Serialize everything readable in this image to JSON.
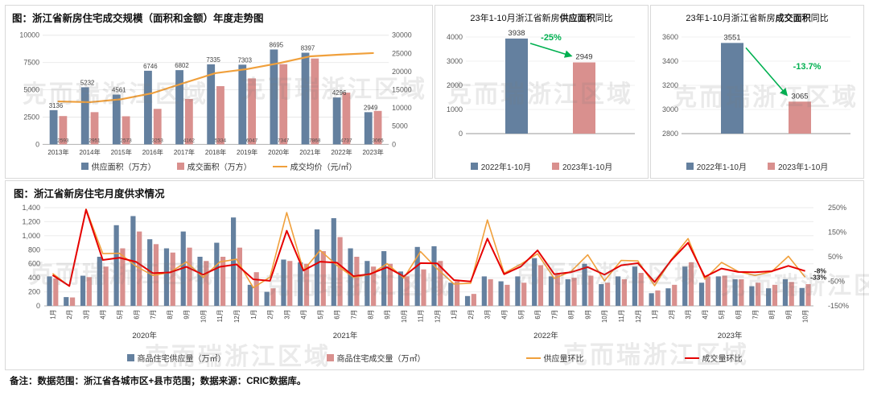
{
  "watermark": {
    "text": "克而瑞浙江区域"
  },
  "note": "备注：数据范围：浙江省各城市区+县市范围；数据来源：CRIC数据库。",
  "colors": {
    "bar_supply": "#64809f",
    "bar_deal": "#d9908e",
    "line_price": "#f0a03c",
    "line_supply_mom": "#f0a03c",
    "line_deal_mom": "#e60000",
    "green": "#00b050"
  },
  "chart_data": [
    {
      "id": "annual_scale",
      "type": "bar+line",
      "title": "图：浙江省新房住宅成交规模（面积和金额）年度走势图",
      "categories": [
        "2013年",
        "2014年",
        "2015年",
        "2016年",
        "2017年",
        "2018年",
        "2019年",
        "2020年",
        "2021年",
        "2022年",
        "2023年"
      ],
      "series": [
        {
          "name": "供应面积（万方）",
          "type": "bar",
          "axis": "left",
          "values": [
            3136,
            5232,
            4561,
            6746,
            6802,
            7335,
            7303,
            8695,
            8397,
            4296,
            2949
          ]
        },
        {
          "name": "成交面积（万方）",
          "type": "bar",
          "axis": "left",
          "values": [
            2593,
            2951,
            2573,
            3253,
            4162,
            5334,
            6047,
            7347,
            7868,
            4737,
            3065
          ]
        },
        {
          "name": "成交均价（元/㎡）",
          "type": "line",
          "axis": "right",
          "values": [
            11800,
            11600,
            12400,
            14100,
            16900,
            19600,
            20700,
            22300,
            24200,
            24700,
            25100
          ]
        }
      ],
      "left_axis": {
        "min": 0,
        "max": 10000,
        "ticks": [
          0,
          2500,
          5000,
          7500,
          10000
        ]
      },
      "right_axis": {
        "min": 0,
        "max": 30000,
        "ticks": [
          0,
          5000,
          10000,
          15000,
          20000,
          25000,
          30000
        ]
      },
      "grid": true
    },
    {
      "id": "supply_area_yoy",
      "type": "bar",
      "title_prefix": "23年1-10月浙江省新房",
      "title_bold": "供应面积",
      "title_suffix": "同比",
      "categories": [
        "2022年1-10月",
        "2023年1-10月"
      ],
      "values": [
        3938,
        2949
      ],
      "annotation": "-25%",
      "left_axis": {
        "min": 0,
        "max": 4000,
        "ticks": [
          0,
          1000,
          2000,
          3000,
          4000
        ]
      }
    },
    {
      "id": "deal_area_yoy",
      "type": "bar",
      "title_prefix": "23年1-10月浙江省新房",
      "title_bold": "成交面积",
      "title_suffix": "同比",
      "categories": [
        "2022年1-10月",
        "2023年1-10月"
      ],
      "values": [
        3551,
        3065
      ],
      "annotation": "-13.7%",
      "left_axis": {
        "min": 2800,
        "max": 3600,
        "ticks": [
          2800,
          3000,
          3200,
          3400,
          3600
        ]
      }
    },
    {
      "id": "monthly_supply_demand",
      "type": "bar+line",
      "title": "图：浙江省新房住宅月度供求情况",
      "groups": [
        {
          "year": "2020年",
          "months": [
            "1月",
            "2月",
            "3月",
            "4月",
            "5月",
            "6月",
            "7月",
            "8月",
            "9月",
            "10月",
            "11月",
            "12月"
          ]
        },
        {
          "year": "2021年",
          "months": [
            "1月",
            "2月",
            "3月",
            "4月",
            "5月",
            "6月",
            "7月",
            "8月",
            "9月",
            "10月",
            "11月",
            "12月"
          ]
        },
        {
          "year": "2022年",
          "months": [
            "1月",
            "2月",
            "3月",
            "4月",
            "5月",
            "6月",
            "7月",
            "8月",
            "9月",
            "10月",
            "11月",
            "12月"
          ]
        },
        {
          "year": "2023年",
          "months": [
            "1月",
            "2月",
            "3月",
            "4月",
            "5月",
            "6月",
            "7月",
            "8月",
            "9月",
            "10月"
          ]
        }
      ],
      "series": [
        {
          "name": "商品住宅供应量（万㎡）",
          "type": "bar",
          "axis": "left",
          "values": [
            420,
            125,
            430,
            700,
            1150,
            1280,
            950,
            820,
            1060,
            700,
            900,
            1260,
            300,
            200,
            660,
            620,
            1090,
            1250,
            820,
            640,
            780,
            490,
            840,
            850,
            330,
            140,
            420,
            350,
            420,
            680,
            420,
            380,
            600,
            310,
            420,
            560,
            180,
            250,
            560,
            330,
            420,
            380,
            280,
            250,
            380,
            255
          ]
        },
        {
          "name": "商品住宅成交量（万㎡）",
          "type": "bar",
          "axis": "left",
          "values": [
            390,
            120,
            410,
            560,
            820,
            1060,
            880,
            760,
            830,
            640,
            700,
            830,
            480,
            250,
            640,
            600,
            780,
            980,
            700,
            560,
            600,
            420,
            520,
            640,
            350,
            170,
            380,
            300,
            330,
            580,
            460,
            400,
            430,
            330,
            380,
            470,
            220,
            300,
            620,
            420,
            430,
            380,
            330,
            300,
            340,
            310
          ]
        },
        {
          "name": "供应量环比",
          "type": "line",
          "axis": "right",
          "values": [
            -18,
            -70,
            244,
            63,
            64,
            11,
            -26,
            -14,
            29,
            -34,
            29,
            40,
            -76,
            -33,
            230,
            -6,
            76,
            15,
            -34,
            -22,
            22,
            -37,
            71,
            1,
            -61,
            -58,
            200,
            -17,
            20,
            62,
            -38,
            -10,
            58,
            -48,
            35,
            33,
            -68,
            39,
            124,
            -41,
            27,
            -10,
            -26,
            -11,
            52,
            -33
          ]
        },
        {
          "name": "成交量环比",
          "type": "line",
          "axis": "right",
          "values": [
            -25,
            -69,
            242,
            37,
            46,
            29,
            -17,
            -14,
            9,
            -23,
            9,
            19,
            -42,
            -48,
            156,
            -6,
            30,
            26,
            -29,
            -20,
            7,
            -30,
            24,
            23,
            -45,
            -51,
            124,
            -21,
            10,
            76,
            -21,
            -13,
            8,
            -23,
            15,
            24,
            -53,
            36,
            107,
            -32,
            2,
            -12,
            -13,
            -9,
            13,
            -8
          ]
        }
      ],
      "left_axis": {
        "min": 0,
        "max": 1400,
        "ticks": [
          0,
          200,
          400,
          600,
          800,
          1000,
          1200,
          1400
        ]
      },
      "right_axis": {
        "min": -150,
        "max": 250,
        "ticks": [
          250,
          150,
          50,
          -50,
          -150
        ],
        "suffix": "%"
      },
      "end_labels": [
        {
          "series": "成交量环比",
          "text": "-8%"
        },
        {
          "series": "供应量环比",
          "text": "-33%"
        }
      ],
      "grid": true
    }
  ]
}
